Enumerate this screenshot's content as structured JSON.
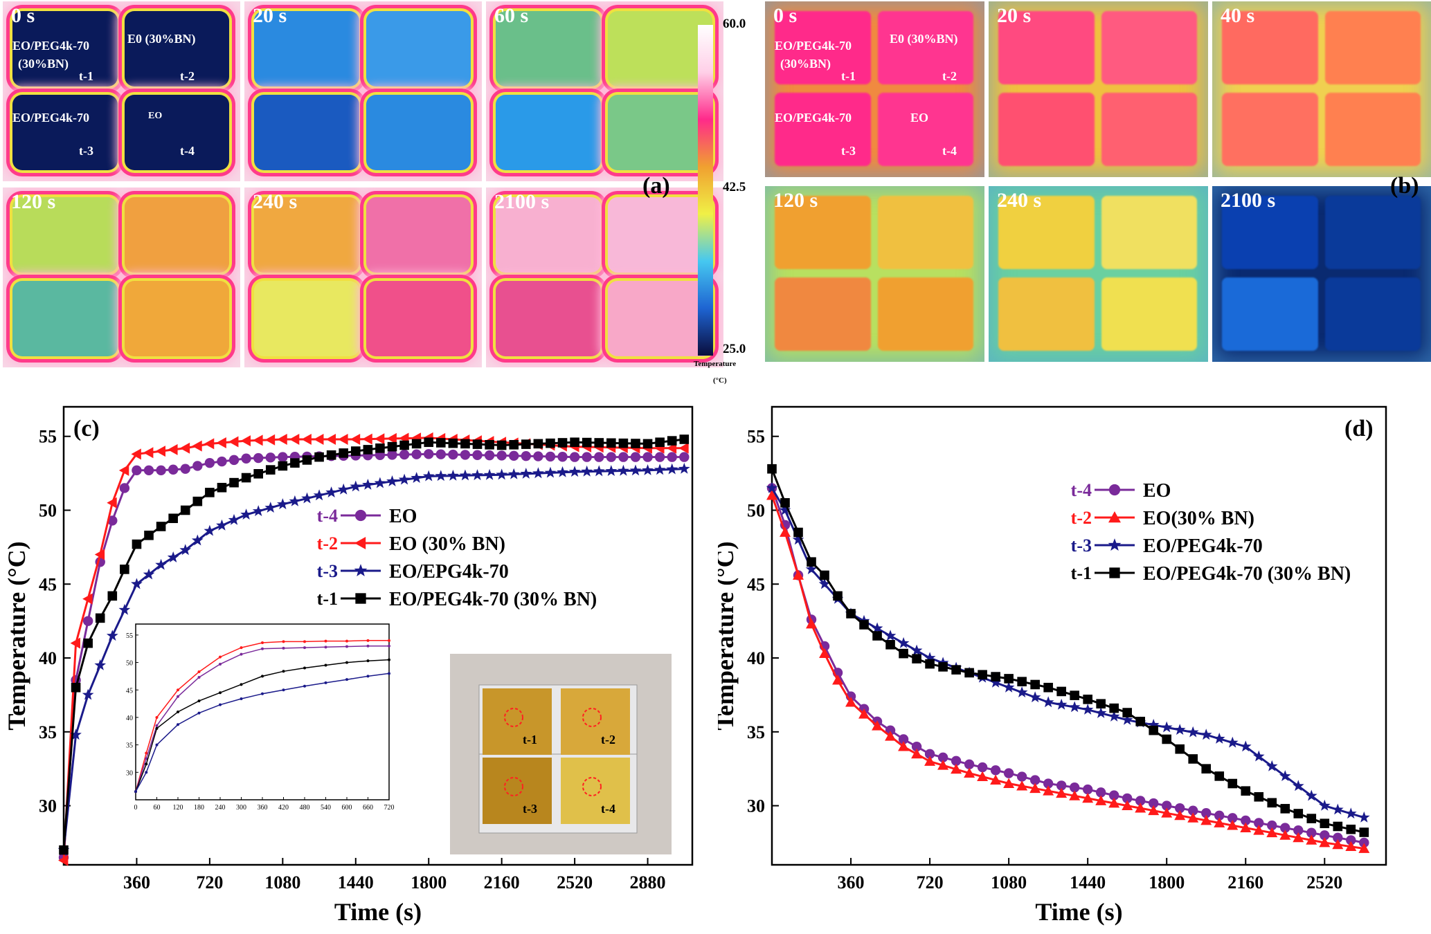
{
  "colorbar": {
    "max_label": "60.0",
    "mid_label": "42.5",
    "min_label": "25.0",
    "title": "Temperature",
    "unit": "(°C)",
    "colors": [
      "#0a0d3c",
      "#1e64d2",
      "#46c8f0",
      "#f0f046",
      "#f0a030",
      "#ff2a8a",
      "#ffd0e8",
      "#ffffff"
    ]
  },
  "panel_a": {
    "letter": "(a)",
    "times": [
      "0 s",
      "20 s",
      "60 s",
      "120 s",
      "240 s",
      "2100 s"
    ],
    "cell_labels": {
      "t1_name": "EO/PEG4k-70",
      "t1_sub": "(30%BN)",
      "t1_tag": "t-1",
      "t2_name": "E0 (30%BN)",
      "t2_tag": "t-2",
      "t3_name": "EO/PEG4k-70",
      "t3_tag": "t-3",
      "t4_name": "EO",
      "t4_tag": "t-4"
    },
    "frame_colors": [
      [
        "#0a1a5a",
        "#0a1a5a",
        "#0a1a5a",
        "#0a1a5a"
      ],
      [
        "#2a8ae0",
        "#3a9ae8",
        "#1a5ac0",
        "#2a8ae0"
      ],
      [
        "#6abf8a",
        "#bde05a",
        "#2a9ae8",
        "#7ac888"
      ],
      [
        "#b8dc5a",
        "#f0a040",
        "#5ab8a0",
        "#f0a83a"
      ],
      [
        "#f0a840",
        "#f070a8",
        "#e8e860",
        "#f0508a"
      ],
      [
        "#f8b0d0",
        "#f8b8d8",
        "#e85090",
        "#f8a8c8"
      ]
    ]
  },
  "panel_b": {
    "letter": "(b)",
    "times": [
      "0 s",
      "20 s",
      "40 s",
      "120 s",
      "240 s",
      "2100 s"
    ],
    "cell_labels": {
      "t1_name": "EO/PEG4k-70",
      "t1_sub": "(30%BN)",
      "t1_tag": "t-1",
      "t2_name": "E0 (30%BN)",
      "t2_tag": "t-2",
      "t3_name": "EO/PEG4k-70",
      "t3_tag": "t-3",
      "t4_name": "EO",
      "t4_tag": "t-4"
    },
    "frame_colors": [
      [
        "#ff2a8a",
        "#ff3590",
        "#ff2a8a",
        "#ff3590"
      ],
      [
        "#ff4a80",
        "#ff5a80",
        "#ff5070",
        "#ff6070"
      ],
      [
        "#ff6a60",
        "#ff8050",
        "#ff7060",
        "#ff8050"
      ],
      [
        "#f0a030",
        "#f0c040",
        "#f08840",
        "#f0a030"
      ],
      [
        "#f0d040",
        "#f0e060",
        "#f0c040",
        "#f0e050"
      ],
      [
        "#0a40b0",
        "#0a3a9a",
        "#1a6ad8",
        "#0a3a9a"
      ]
    ],
    "bg_colors": [
      "#f08a40",
      "#f0c040",
      "#f0d050",
      "#b8e060",
      "#6ad0a0",
      "#0a2a70"
    ]
  },
  "chart_data": [
    {
      "type": "line",
      "panel_label": "(c)",
      "xlabel": "Time (s)",
      "ylabel": "Temperature (°C)",
      "xlim": [
        0,
        3100
      ],
      "ylim": [
        26,
        57
      ],
      "xticks": [
        360,
        720,
        1080,
        1440,
        1800,
        2160,
        2520,
        2880
      ],
      "yticks": [
        30,
        35,
        40,
        45,
        50,
        55
      ],
      "series": [
        {
          "tag": "t-4",
          "name": "EO",
          "color": "#7a2a9a",
          "marker": "circle",
          "x": [
            0,
            60,
            120,
            180,
            240,
            300,
            360,
            480,
            600,
            720,
            900,
            1080,
            1440,
            1800,
            2160,
            2520,
            2880,
            3060
          ],
          "y": [
            26.5,
            38.5,
            42.5,
            46.5,
            49.3,
            51.5,
            52.7,
            52.7,
            52.8,
            53.2,
            53.5,
            53.6,
            53.7,
            53.8,
            53.7,
            53.6,
            53.6,
            53.6
          ]
        },
        {
          "tag": "t-2",
          "name": "EO (30% BN)",
          "color": "#ff1a1a",
          "marker": "triangle-left",
          "x": [
            0,
            60,
            120,
            180,
            240,
            300,
            360,
            480,
            600,
            720,
            900,
            1080,
            1440,
            1800,
            2160,
            2520,
            2880,
            3060
          ],
          "y": [
            26.3,
            41.0,
            44.0,
            47.0,
            50.5,
            52.7,
            53.8,
            54.0,
            54.2,
            54.5,
            54.7,
            54.8,
            54.8,
            54.9,
            54.6,
            54.3,
            54.2,
            54.2
          ]
        },
        {
          "tag": "t-3",
          "name": "EO/EPG4k-70",
          "color": "#1a1a8a",
          "marker": "star",
          "x": [
            0,
            60,
            120,
            180,
            240,
            360,
            480,
            600,
            720,
            900,
            1080,
            1260,
            1440,
            1800,
            2160,
            2520,
            2880,
            3060
          ],
          "y": [
            27.0,
            34.8,
            37.5,
            39.5,
            41.5,
            45.0,
            46.3,
            47.3,
            48.6,
            49.7,
            50.4,
            51.0,
            51.6,
            52.3,
            52.4,
            52.6,
            52.7,
            52.8
          ]
        },
        {
          "tag": "t-1",
          "name": "EO/PEG4k-70 (30% BN)",
          "color": "#000000",
          "marker": "square",
          "x": [
            0,
            60,
            120,
            180,
            240,
            300,
            360,
            480,
            600,
            720,
            900,
            1080,
            1260,
            1440,
            1620,
            1800,
            2160,
            2520,
            2880,
            3060
          ],
          "y": [
            27.0,
            38.0,
            41.0,
            42.7,
            44.2,
            46.0,
            47.7,
            48.9,
            50.0,
            51.2,
            52.2,
            53.0,
            53.6,
            54.0,
            54.3,
            54.6,
            54.4,
            54.6,
            54.5,
            54.8
          ]
        }
      ]
    },
    {
      "type": "line",
      "panel_label": "inset",
      "xlim": [
        0,
        720
      ],
      "ylim": [
        25,
        57
      ],
      "xticks": [
        0,
        60,
        120,
        180,
        240,
        300,
        360,
        420,
        480,
        540,
        600,
        660,
        720
      ],
      "yticks": [
        30,
        35,
        40,
        45,
        50,
        55
      ],
      "series": [
        {
          "color": "#ff1a1a",
          "x": [
            0,
            30,
            60,
            120,
            180,
            240,
            300,
            360,
            420,
            480,
            540,
            600,
            660,
            720
          ],
          "y": [
            26.5,
            33.5,
            40.0,
            45.0,
            48.3,
            51.0,
            52.7,
            53.6,
            53.8,
            53.8,
            53.9,
            53.9,
            54.0,
            54.0
          ]
        },
        {
          "color": "#7a2a9a",
          "x": [
            0,
            30,
            60,
            120,
            180,
            240,
            300,
            360,
            420,
            480,
            540,
            600,
            660,
            720
          ],
          "y": [
            26.5,
            32.5,
            38.5,
            43.8,
            47.3,
            49.7,
            51.5,
            52.5,
            52.6,
            52.7,
            52.8,
            52.9,
            53.0,
            53.0
          ]
        },
        {
          "color": "#000000",
          "x": [
            0,
            30,
            60,
            120,
            180,
            240,
            300,
            360,
            420,
            480,
            540,
            600,
            660,
            720
          ],
          "y": [
            26.5,
            31.5,
            38.0,
            41.0,
            43.0,
            44.5,
            46.0,
            47.5,
            48.4,
            49.0,
            49.5,
            50.0,
            50.3,
            50.5
          ]
        },
        {
          "color": "#1a1a8a",
          "x": [
            0,
            30,
            60,
            120,
            180,
            240,
            300,
            360,
            420,
            480,
            540,
            600,
            660,
            720
          ],
          "y": [
            26.5,
            30.0,
            35.0,
            38.7,
            40.8,
            42.3,
            43.4,
            44.3,
            45.0,
            45.7,
            46.3,
            46.9,
            47.5,
            48.0
          ]
        }
      ]
    },
    {
      "type": "line",
      "panel_label": "(d)",
      "xlabel": "Time (s)",
      "ylabel": "Temperature (°C)",
      "xlim": [
        0,
        2800
      ],
      "ylim": [
        26,
        57
      ],
      "xticks": [
        360,
        720,
        1080,
        1440,
        1800,
        2160,
        2520
      ],
      "yticks": [
        30,
        35,
        40,
        45,
        50,
        55
      ],
      "series": [
        {
          "tag": "t-4",
          "name": "EO",
          "color": "#7a2a9a",
          "marker": "circle",
          "x": [
            0,
            60,
            120,
            180,
            240,
            300,
            360,
            480,
            600,
            720,
            900,
            1080,
            1260,
            1440,
            1620,
            1800,
            1980,
            2160,
            2340,
            2520,
            2700
          ],
          "y": [
            51.5,
            49.0,
            45.6,
            42.6,
            40.8,
            39.0,
            37.4,
            35.7,
            34.5,
            33.5,
            32.8,
            32.2,
            31.5,
            31.1,
            30.5,
            30.0,
            29.5,
            29.0,
            28.5,
            28.0,
            27.5
          ]
        },
        {
          "tag": "t-2",
          "name": "EO(30% BN)",
          "color": "#ff1a1a",
          "marker": "triangle",
          "x": [
            0,
            60,
            120,
            180,
            240,
            300,
            360,
            480,
            600,
            720,
            900,
            1080,
            1260,
            1440,
            1620,
            1800,
            1980,
            2160,
            2340,
            2520,
            2700
          ],
          "y": [
            51.0,
            48.5,
            45.6,
            42.3,
            40.3,
            38.5,
            37.0,
            35.4,
            34.0,
            33.0,
            32.2,
            31.5,
            31.0,
            30.5,
            30.0,
            29.5,
            29.0,
            28.5,
            28.0,
            27.5,
            27.1
          ]
        },
        {
          "tag": "t-3",
          "name": "EO/PEG4k-70",
          "color": "#1a1a8a",
          "marker": "star",
          "x": [
            0,
            60,
            120,
            180,
            240,
            300,
            360,
            480,
            600,
            720,
            900,
            1080,
            1260,
            1440,
            1620,
            1800,
            1980,
            2160,
            2340,
            2520,
            2700
          ],
          "y": [
            51.5,
            50.0,
            48.0,
            46.0,
            45.0,
            44.0,
            43.0,
            42.0,
            41.0,
            40.0,
            39.0,
            38.0,
            37.0,
            36.5,
            35.8,
            35.3,
            34.8,
            34.0,
            32.0,
            30.0,
            29.2
          ]
        },
        {
          "tag": "t-1",
          "name": "EO/PEG4k-70 (30% BN)",
          "color": "#000000",
          "marker": "square",
          "x": [
            0,
            60,
            120,
            180,
            240,
            300,
            360,
            480,
            600,
            720,
            900,
            1080,
            1260,
            1440,
            1620,
            1800,
            1980,
            2160,
            2340,
            2520,
            2700
          ],
          "y": [
            52.8,
            50.5,
            48.5,
            46.5,
            45.6,
            44.2,
            43.0,
            41.5,
            40.3,
            39.6,
            39.0,
            38.6,
            38.0,
            37.2,
            36.3,
            34.5,
            32.5,
            31.0,
            29.8,
            28.8,
            28.2
          ]
        }
      ]
    }
  ],
  "photo": {
    "tags": [
      "t-1",
      "t-2",
      "t-3",
      "t-4"
    ],
    "colors": [
      "#c8962a",
      "#d8a83a",
      "#b8861e",
      "#e0c04a"
    ]
  }
}
